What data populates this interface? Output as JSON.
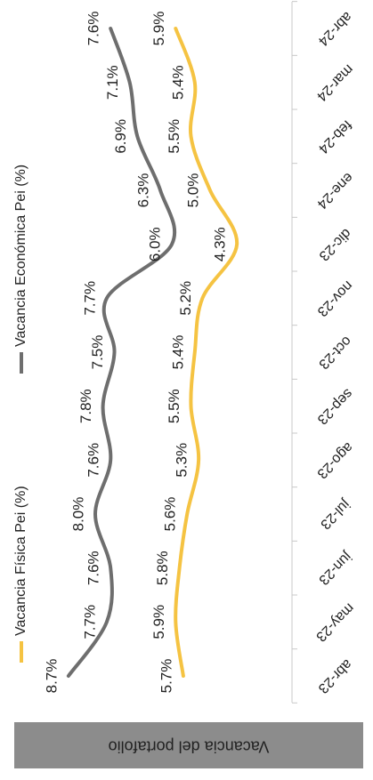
{
  "banner": {
    "title": "Vacancia del portafolio",
    "background": "#8C8C8C",
    "text_color": "#FFFFFF"
  },
  "chart_data": {
    "type": "line",
    "title": "",
    "xlabel": "",
    "ylabel": "",
    "categories": [
      "abr-23",
      "may-23",
      "jun-23",
      "jul-23",
      "ago-23",
      "sep-23",
      "oct-23",
      "nov-23",
      "dic-23",
      "ene-24",
      "feb-24",
      "mar-24",
      "abr-24"
    ],
    "ylim": [
      3,
      9
    ],
    "grid": false,
    "legend_position": "top",
    "orientation": "rotated 180 degrees",
    "series": [
      {
        "name": "Vacancia Física Pei (%)",
        "color": "#F5C342",
        "values": [
          5.7,
          5.9,
          5.8,
          5.6,
          5.3,
          5.5,
          5.4,
          5.2,
          4.3,
          5.0,
          5.5,
          5.4,
          5.9
        ],
        "labels": [
          "5.7%",
          "5.9%",
          "5.8%",
          "5.6%",
          "5.3%",
          "5.5%",
          "5.4%",
          "5.2%",
          "4.3%",
          "5.0%",
          "5.5%",
          "5.4%",
          "5.9%"
        ]
      },
      {
        "name": "Vacancia Económica Pei (%)",
        "color": "#6E6E6E",
        "values": [
          8.7,
          7.7,
          7.6,
          8.0,
          7.6,
          7.8,
          7.5,
          7.7,
          6.0,
          6.3,
          6.9,
          7.1,
          7.6
        ],
        "labels": [
          "8.7%",
          "7.7%",
          "7.6%",
          "8.0%",
          "7.6%",
          "7.8%",
          "7.5%",
          "7.7%",
          "6.0%",
          "6.3%",
          "6.9%",
          "7.1%",
          "7.6%"
        ]
      }
    ]
  }
}
